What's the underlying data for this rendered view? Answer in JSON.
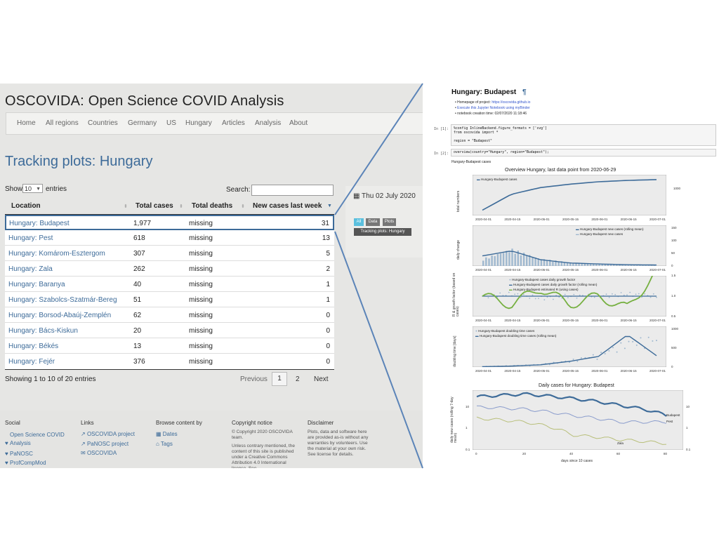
{
  "site": {
    "title": "OSCOVIDA: Open Science COVID Analysis",
    "nav": [
      "Home",
      "All regions",
      "Countries",
      "Germany",
      "US",
      "Hungary",
      "Articles",
      "Analysis",
      "About"
    ],
    "page_heading": "Tracking plots: Hungary"
  },
  "table": {
    "show_label": "Show",
    "entries_value": "10",
    "entries_label": "entries",
    "search_label": "Search:",
    "search_value": "",
    "columns": [
      "Location",
      "Total cases",
      "Total deaths",
      "New cases last week"
    ],
    "rows": [
      {
        "location": "Hungary: Budapest",
        "total_cases": "1,977",
        "total_deaths": "missing",
        "new_cases": "31"
      },
      {
        "location": "Hungary: Pest",
        "total_cases": "618",
        "total_deaths": "missing",
        "new_cases": "13"
      },
      {
        "location": "Hungary: Komárom-Esztergom",
        "total_cases": "307",
        "total_deaths": "missing",
        "new_cases": "5"
      },
      {
        "location": "Hungary: Zala",
        "total_cases": "262",
        "total_deaths": "missing",
        "new_cases": "2"
      },
      {
        "location": "Hungary: Baranya",
        "total_cases": "40",
        "total_deaths": "missing",
        "new_cases": "1"
      },
      {
        "location": "Hungary: Szabolcs-Szatmár-Bereg",
        "total_cases": "51",
        "total_deaths": "missing",
        "new_cases": "1"
      },
      {
        "location": "Hungary: Borsod-Abaúj-Zemplén",
        "total_cases": "62",
        "total_deaths": "missing",
        "new_cases": "0"
      },
      {
        "location": "Hungary: Bács-Kiskun",
        "total_cases": "20",
        "total_deaths": "missing",
        "new_cases": "0"
      },
      {
        "location": "Hungary: Békés",
        "total_cases": "13",
        "total_deaths": "missing",
        "new_cases": "0"
      },
      {
        "location": "Hungary: Fejér",
        "total_cases": "376",
        "total_deaths": "missing",
        "new_cases": "0"
      }
    ],
    "info": "Showing 1 to 10 of 20 entries",
    "pagination": {
      "previous": "Previous",
      "current": "1",
      "page2": "2",
      "next": "Next"
    }
  },
  "side": {
    "date": "Thu 02 July 2020",
    "tags": [
      "All",
      "Data",
      "Plots"
    ],
    "tag_highlight": "Tracking plots: Hungary"
  },
  "footer": {
    "social_heading": "Social",
    "social": [
      "Open Science COVID Analysis",
      "PaNOSC",
      "ProfCompMod"
    ],
    "links_heading": "Links",
    "links": [
      "OSCOVIDA project",
      "PaNOSC project",
      "OSCOVIDA"
    ],
    "browse_heading": "Browse content by",
    "browse": [
      "Dates",
      "Tags"
    ],
    "copyright_heading": "Copyright notice",
    "copyright_text": "© Copyright 2020 OSCOVIDA team.",
    "copyright_text2": "Unless contrary mentioned, the content of this site is published under a Creative Commons Attribution 4.0 International license. See",
    "disclaimer_heading": "Disclaimer",
    "disclaimer_text": "Plots, data and software here are provided as-is without any warranties by volunteers. Use the material at your own risk. See license for details."
  },
  "notebook": {
    "title": "Hungary: Budapest",
    "pilcrow": "¶",
    "bullets": [
      {
        "text": "Homepage of project:",
        "link": "https://oscovida.github.io"
      },
      {
        "text": "",
        "link": "Execute this Jupyter Notebook using myBinder"
      },
      {
        "text": "notebook creation time: 02/07/2020 11:18:46",
        "link": ""
      }
    ],
    "cell1_prompt": "In [1]:",
    "cell1_code": [
      "%config InlineBackend.figure_formats = ['svg']",
      "from oscovida import *",
      "",
      "region = \"Budapest\""
    ],
    "cell2_prompt": "In [2]:",
    "cell2_code": "overview(country=\"Hungary\", region=\"Budapest\");",
    "output_label": "Hungary-Budapest cases",
    "overview_title": "Overview Hungary, last data point from 2020-06-29",
    "daily_title": "Daily cases for Hungary: Budapest"
  },
  "chart_data": [
    {
      "type": "line",
      "title": "Overview Hungary, last data point from 2020-06-29",
      "ylabel": "total numbers",
      "x": [
        "2020-04-01",
        "2020-04-15",
        "2020-05-01",
        "2020-05-15",
        "2020-06-01",
        "2020-06-15",
        "2020-07-01"
      ],
      "series": [
        {
          "name": "Hungary-Budapest cases",
          "values": [
            150,
            1100,
            1500,
            1700,
            1850,
            1930,
            1977
          ]
        }
      ],
      "yticks_right": [
        1000
      ]
    },
    {
      "type": "bar",
      "ylabel": "daily change",
      "x": [
        "2020-04-01",
        "2020-04-15",
        "2020-05-01",
        "2020-05-15",
        "2020-06-01",
        "2020-06-15",
        "2020-07-01"
      ],
      "series": [
        {
          "name": "Hungary-Budapest new cases (rolling mean)",
          "values": [
            40,
            60,
            25,
            12,
            8,
            5,
            4
          ]
        },
        {
          "name": "Hungary-Budapest new cases",
          "values": [
            30,
            70,
            30,
            15,
            8,
            5,
            4
          ]
        }
      ],
      "ylim": [
        0,
        150
      ],
      "yticks": [
        0,
        50,
        100,
        150
      ]
    },
    {
      "type": "line",
      "ylabel": "R & growth factor (based on cases)",
      "x": [
        "2020-04-01",
        "2020-04-15",
        "2020-05-01",
        "2020-05-15",
        "2020-06-01",
        "2020-06-15",
        "2020-07-01"
      ],
      "series": [
        {
          "name": "Hungary-Budapest cases daily growth factor",
          "values": [
            1.0,
            1.05,
            0.95,
            1.0,
            1.0,
            1.05,
            1.0
          ]
        },
        {
          "name": "Hungary-Budapest cases daily growth factor (rolling mean)",
          "values": [
            1.0,
            1.0,
            1.0,
            1.0,
            1.0,
            1.0,
            1.0
          ]
        },
        {
          "name": "Hungary-Budapest estimated R (using cases)",
          "values": [
            1.0,
            0.8,
            1.2,
            0.8,
            1.0,
            0.7,
            1.6
          ]
        }
      ],
      "ylim": [
        0.5,
        1.5
      ],
      "yticks": [
        0.5,
        1.0,
        1.5
      ]
    },
    {
      "type": "scatter",
      "ylabel": "doubling time [days]",
      "x": [
        "2020-04-01",
        "2020-04-15",
        "2020-05-01",
        "2020-05-15",
        "2020-06-01",
        "2020-06-15",
        "2020-07-01"
      ],
      "series": [
        {
          "name": "Hungary-Budapest doubling time cases",
          "values": [
            10,
            30,
            60,
            150,
            300,
            600,
            700
          ]
        },
        {
          "name": "Hungary-Budapest doubling time cases (rolling mean)",
          "values": [
            10,
            25,
            60,
            150,
            280,
            850,
            300
          ]
        }
      ],
      "ylim": [
        0,
        1000
      ],
      "yticks": [
        0,
        500,
        1000
      ]
    },
    {
      "type": "line",
      "title": "Daily cases for Hungary: Budapest",
      "xlabel": "days since 10 cases",
      "ylabel": "daily new cases (rolling 7-day mean)",
      "x": [
        0,
        20,
        40,
        60,
        80
      ],
      "yscale": "log",
      "series": [
        {
          "name": "Budapest",
          "values": [
            30,
            40,
            25,
            12,
            4
          ]
        },
        {
          "name": "Pest",
          "values": [
            10,
            8,
            4,
            2,
            2
          ]
        },
        {
          "name": "Zala",
          "values": [
            3,
            2,
            0.5,
            0.3,
            0.2
          ]
        }
      ],
      "yticks": [
        0.1,
        1,
        10
      ]
    }
  ]
}
